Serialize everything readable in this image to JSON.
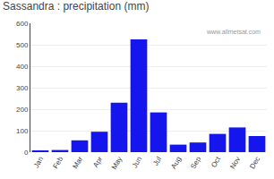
{
  "chart_data": {
    "type": "bar",
    "title": "Sassandra : precipitation (mm)",
    "categories": [
      "Jan",
      "Feb",
      "Mar",
      "Apr",
      "May",
      "Jun",
      "Jul",
      "Aug",
      "Sep",
      "Oct",
      "Nov",
      "Dec"
    ],
    "values": [
      5,
      10,
      55,
      95,
      230,
      525,
      185,
      35,
      45,
      85,
      115,
      75
    ],
    "color": "#1515ee",
    "ylim": [
      0,
      600
    ],
    "yticks": [
      0,
      100,
      200,
      300,
      400,
      500,
      600
    ],
    "grid": true,
    "annotations": [
      "www.allmetsat.com"
    ]
  }
}
